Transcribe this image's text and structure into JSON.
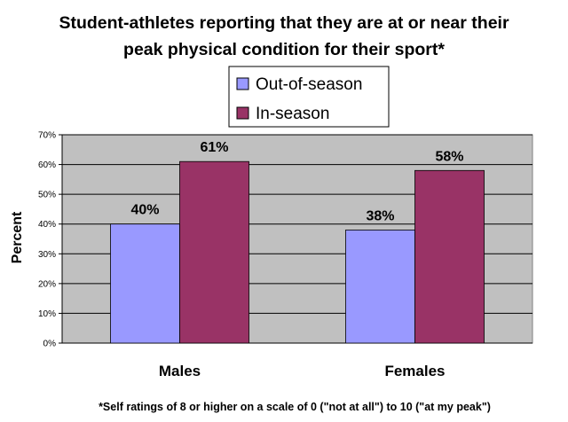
{
  "chart_data": {
    "type": "bar",
    "title": "Student-athletes reporting that they are at or near their peak physical condition for their sport*",
    "title_lines": [
      "Student-athletes reporting that they are at or near their",
      "peak physical condition for their sport*"
    ],
    "categories": [
      "Males",
      "Females"
    ],
    "series": [
      {
        "name": "Out-of-season",
        "values": [
          40,
          38
        ],
        "labels": [
          "40%",
          "38%"
        ],
        "color": "#9999ff"
      },
      {
        "name": "In-season",
        "values": [
          61,
          58
        ],
        "labels": [
          "61%",
          "58%"
        ],
        "color": "#993366"
      }
    ],
    "ylabel": "Percent",
    "xlabel": "",
    "ylim": [
      0,
      70
    ],
    "yticks": [
      "0%",
      "10%",
      "20%",
      "30%",
      "40%",
      "50%",
      "60%",
      "70%"
    ],
    "ytick_values": [
      0,
      10,
      20,
      30,
      40,
      50,
      60,
      70
    ],
    "grid": true,
    "legend_placement": "top-center",
    "plot_background": "#c0c0c0",
    "footnote": "*Self ratings of 8 or higher on a scale of 0 (\"not at all\") to 10 (\"at my peak\")"
  }
}
